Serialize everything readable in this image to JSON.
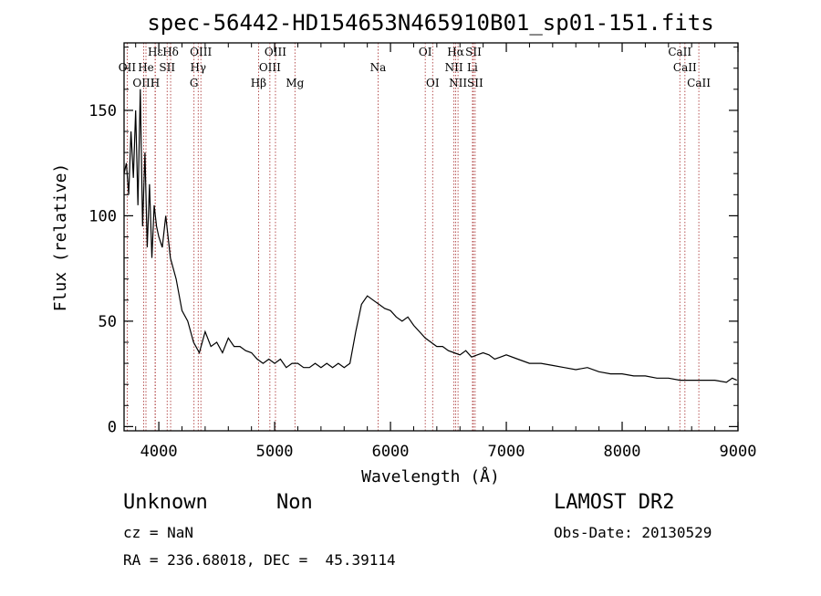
{
  "chart_data": {
    "type": "line",
    "title": "spec-56442-HD154653N465910B01_sp01-151.fits",
    "xlabel": "Wavelength (Å)",
    "ylabel": "Flux (relative)",
    "xlim": [
      3700,
      9000
    ],
    "ylim": [
      -2,
      182
    ],
    "x_ticks": [
      4000,
      5000,
      6000,
      7000,
      8000,
      9000
    ],
    "y_ticks": [
      0,
      50,
      100,
      150
    ],
    "grid": false,
    "series": [
      {
        "color": "#000000",
        "x": [
          3700,
          3720,
          3740,
          3760,
          3780,
          3800,
          3820,
          3840,
          3860,
          3880,
          3900,
          3920,
          3940,
          3960,
          3980,
          4000,
          4030,
          4060,
          4100,
          4150,
          4200,
          4250,
          4300,
          4350,
          4400,
          4450,
          4500,
          4550,
          4600,
          4650,
          4700,
          4750,
          4800,
          4850,
          4900,
          4950,
          5000,
          5050,
          5100,
          5150,
          5200,
          5250,
          5300,
          5350,
          5400,
          5450,
          5500,
          5550,
          5600,
          5650,
          5700,
          5750,
          5800,
          5850,
          5900,
          5950,
          6000,
          6050,
          6100,
          6150,
          6200,
          6250,
          6300,
          6350,
          6400,
          6450,
          6500,
          6550,
          6600,
          6650,
          6700,
          6750,
          6800,
          6850,
          6900,
          6950,
          7000,
          7100,
          7200,
          7300,
          7400,
          7500,
          7600,
          7700,
          7800,
          7900,
          8000,
          8100,
          8200,
          8300,
          8400,
          8500,
          8600,
          8700,
          8800,
          8900,
          8950,
          8990
        ],
        "y": [
          120,
          125,
          110,
          140,
          118,
          150,
          105,
          160,
          95,
          130,
          85,
          115,
          80,
          105,
          95,
          90,
          85,
          100,
          80,
          70,
          55,
          50,
          40,
          35,
          45,
          38,
          40,
          35,
          42,
          38,
          38,
          36,
          35,
          32,
          30,
          32,
          30,
          32,
          28,
          30,
          30,
          28,
          28,
          30,
          28,
          30,
          28,
          30,
          28,
          30,
          45,
          58,
          62,
          60,
          58,
          56,
          55,
          52,
          50,
          52,
          48,
          45,
          42,
          40,
          38,
          38,
          36,
          35,
          34,
          36,
          33,
          34,
          35,
          34,
          32,
          33,
          34,
          32,
          30,
          30,
          29,
          28,
          27,
          28,
          26,
          25,
          25,
          24,
          24,
          23,
          23,
          22,
          22,
          22,
          22,
          21,
          23,
          22
        ]
      }
    ],
    "lines": [
      {
        "label": "Hε",
        "x": 3970,
        "row": 1
      },
      {
        "label": "Hδ",
        "x": 4102,
        "row": 1
      },
      {
        "label": "OIII",
        "x": 4363,
        "row": 1
      },
      {
        "label": "OIII",
        "x": 5007,
        "row": 1
      },
      {
        "label": "OI",
        "x": 6300,
        "row": 1
      },
      {
        "label": "Hα",
        "x": 6563,
        "row": 1
      },
      {
        "label": "SII",
        "x": 6716,
        "row": 1
      },
      {
        "label": "CaII",
        "x": 8498,
        "row": 1
      },
      {
        "label": "OII",
        "x": 3727,
        "row": 2
      },
      {
        "label": "He",
        "x": 3889,
        "row": 2
      },
      {
        "label": "SII",
        "x": 4072,
        "row": 2
      },
      {
        "label": "Hγ",
        "x": 4340,
        "row": 2
      },
      {
        "label": "OIII",
        "x": 4959,
        "row": 2
      },
      {
        "label": "Na",
        "x": 5893,
        "row": 2
      },
      {
        "label": "NII",
        "x": 6548,
        "row": 2
      },
      {
        "label": "Li",
        "x": 6708,
        "row": 2
      },
      {
        "label": "CaII",
        "x": 8542,
        "row": 2
      },
      {
        "label": "OIII",
        "x": 3869,
        "row": 3
      },
      {
        "label": "H",
        "x": 3968,
        "row": 3
      },
      {
        "label": "G",
        "x": 4304,
        "row": 3
      },
      {
        "label": "Hβ",
        "x": 4861,
        "row": 3
      },
      {
        "label": "Mg",
        "x": 5175,
        "row": 3
      },
      {
        "label": "OI",
        "x": 6364,
        "row": 3
      },
      {
        "label": "NII",
        "x": 6583,
        "row": 3
      },
      {
        "label": "SII",
        "x": 6731,
        "row": 3
      },
      {
        "label": "CaII",
        "x": 8662,
        "row": 3
      }
    ]
  },
  "info": {
    "object_class": "Unknown",
    "object_subclass": "Non",
    "survey": "LAMOST DR2",
    "redshift": "cz = NaN",
    "obs_date": "Obs-Date: 20130529",
    "coords": "RA = 236.68018, DEC =  45.39114"
  }
}
